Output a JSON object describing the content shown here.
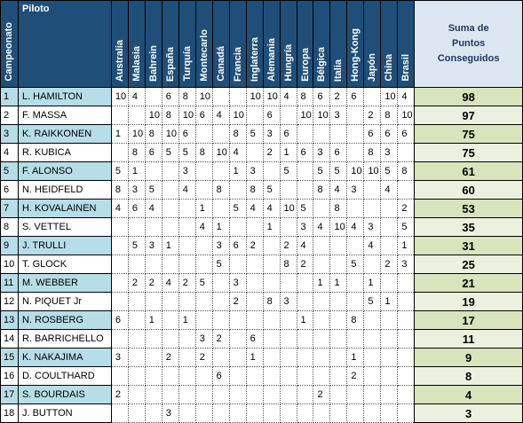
{
  "headers": {
    "position": "Campeonato",
    "pilot": "Piloto",
    "total_line1": "Suma de",
    "total_line2": "Puntos",
    "total_line3": "Conseguidos"
  },
  "races": [
    "Australia",
    "Malasia",
    "Bahrein",
    "España",
    "Turquía",
    "Montecarlo",
    "Canadá",
    "Francia",
    "Inglaterra",
    "Alemania",
    "Hungría",
    "Europa",
    "Bélgica",
    "Italia",
    "Hong-Kong",
    "Japón",
    "China",
    "Brasil"
  ],
  "rows": [
    {
      "pos": "1",
      "pilot": "L. HAMILTON",
      "points": [
        "10",
        "4",
        "",
        "6",
        "8",
        "10",
        "",
        "",
        "10",
        "10",
        "4",
        "8",
        "6",
        "2",
        "6",
        "",
        "10",
        "4"
      ],
      "total": "98"
    },
    {
      "pos": "2",
      "pilot": "F. MASSA",
      "points": [
        "",
        "",
        "10",
        "8",
        "10",
        "6",
        "4",
        "10",
        "",
        "6",
        "",
        "10",
        "10",
        "3",
        "",
        "2",
        "8",
        "10"
      ],
      "total": "97"
    },
    {
      "pos": "3",
      "pilot": "K. RAIKKONEN",
      "points": [
        "1",
        "10",
        "8",
        "10",
        "6",
        "",
        "",
        "8",
        "5",
        "3",
        "6",
        "",
        "",
        "",
        "",
        "6",
        "6",
        "6"
      ],
      "total": "75"
    },
    {
      "pos": "4",
      "pilot": "R. KUBICA",
      "points": [
        "",
        "8",
        "6",
        "5",
        "5",
        "8",
        "10",
        "4",
        "",
        "2",
        "1",
        "6",
        "3",
        "6",
        "",
        "8",
        "3",
        ""
      ],
      "total": "75"
    },
    {
      "pos": "5",
      "pilot": "F. ALONSO",
      "points": [
        "5",
        "1",
        "",
        "",
        "3",
        "",
        "",
        "1",
        "3",
        "",
        "5",
        "",
        "5",
        "5",
        "10",
        "10",
        "5",
        "8"
      ],
      "total": "61"
    },
    {
      "pos": "6",
      "pilot": "N. HEIDFELD",
      "points": [
        "8",
        "3",
        "5",
        "",
        "4",
        "",
        "8",
        "",
        "8",
        "5",
        "",
        "",
        "8",
        "4",
        "3",
        "",
        "4",
        ""
      ],
      "total": "60"
    },
    {
      "pos": "7",
      "pilot": "H. KOVALAINEN",
      "points": [
        "4",
        "6",
        "4",
        "",
        "",
        "1",
        "",
        "5",
        "4",
        "4",
        "10",
        "5",
        "",
        "8",
        "",
        "",
        "",
        "2"
      ],
      "total": "53"
    },
    {
      "pos": "8",
      "pilot": "S. VETTEL",
      "points": [
        "",
        "",
        "",
        "",
        "",
        "4",
        "1",
        "",
        "",
        "1",
        "",
        "3",
        "4",
        "10",
        "4",
        "3",
        "",
        "5"
      ],
      "total": "35"
    },
    {
      "pos": "9",
      "pilot": "J. TRULLI",
      "points": [
        "",
        "5",
        "3",
        "1",
        "",
        "",
        "3",
        "6",
        "2",
        "",
        "2",
        "4",
        "",
        "",
        "",
        "4",
        "",
        "1"
      ],
      "total": "31"
    },
    {
      "pos": "10",
      "pilot": "T. GLOCK",
      "points": [
        "",
        "",
        "",
        "",
        "",
        "",
        "5",
        "",
        "",
        "",
        "8",
        "2",
        "",
        "",
        "5",
        "",
        "2",
        "3"
      ],
      "total": "25"
    },
    {
      "pos": "11",
      "pilot": "M. WEBBER",
      "points": [
        "",
        "2",
        "2",
        "4",
        "2",
        "5",
        "",
        "3",
        "",
        "",
        "",
        "",
        "1",
        "1",
        "",
        "1",
        "",
        ""
      ],
      "total": "21"
    },
    {
      "pos": "12",
      "pilot": "N. PIQUET Jr",
      "points": [
        "",
        "",
        "",
        "",
        "",
        "",
        "",
        "2",
        "",
        "8",
        "3",
        "",
        "",
        "",
        "",
        "5",
        "1",
        ""
      ],
      "total": "19"
    },
    {
      "pos": "13",
      "pilot": "N. ROSBERG",
      "points": [
        "6",
        "",
        "1",
        "",
        "1",
        "",
        "",
        "",
        "",
        "",
        "",
        "1",
        "",
        "",
        "8",
        "",
        "",
        ""
      ],
      "total": "17"
    },
    {
      "pos": "14",
      "pilot": "R. BARRICHELLO",
      "points": [
        "",
        "",
        "",
        "",
        "",
        "3",
        "2",
        "",
        "6",
        "",
        "",
        "",
        "",
        "",
        "",
        "",
        "",
        ""
      ],
      "total": "11"
    },
    {
      "pos": "15",
      "pilot": "K. NAKAJIMA",
      "points": [
        "3",
        "",
        "",
        "2",
        "",
        "2",
        "",
        "",
        "1",
        "",
        "",
        "",
        "",
        "",
        "1",
        "",
        "",
        ""
      ],
      "total": "9"
    },
    {
      "pos": "16",
      "pilot": "D. COULTHARD",
      "points": [
        "",
        "",
        "",
        "",
        "",
        "",
        "6",
        "",
        "",
        "",
        "",
        "",
        "",
        "",
        "2",
        "",
        "",
        ""
      ],
      "total": "8"
    },
    {
      "pos": "17",
      "pilot": "S. BOURDAIS",
      "points": [
        "2",
        "",
        "",
        "",
        "",
        "",
        "",
        "",
        "",
        "",
        "",
        "",
        "2",
        "",
        "",
        "",
        "",
        ""
      ],
      "total": "4"
    },
    {
      "pos": "18",
      "pilot": "J. BUTTON",
      "points": [
        "",
        "",
        "",
        "3",
        "",
        "",
        "",
        "",
        "",
        "",
        "",
        "",
        "",
        "",
        "",
        "",
        "",
        ""
      ],
      "total": "3"
    }
  ]
}
